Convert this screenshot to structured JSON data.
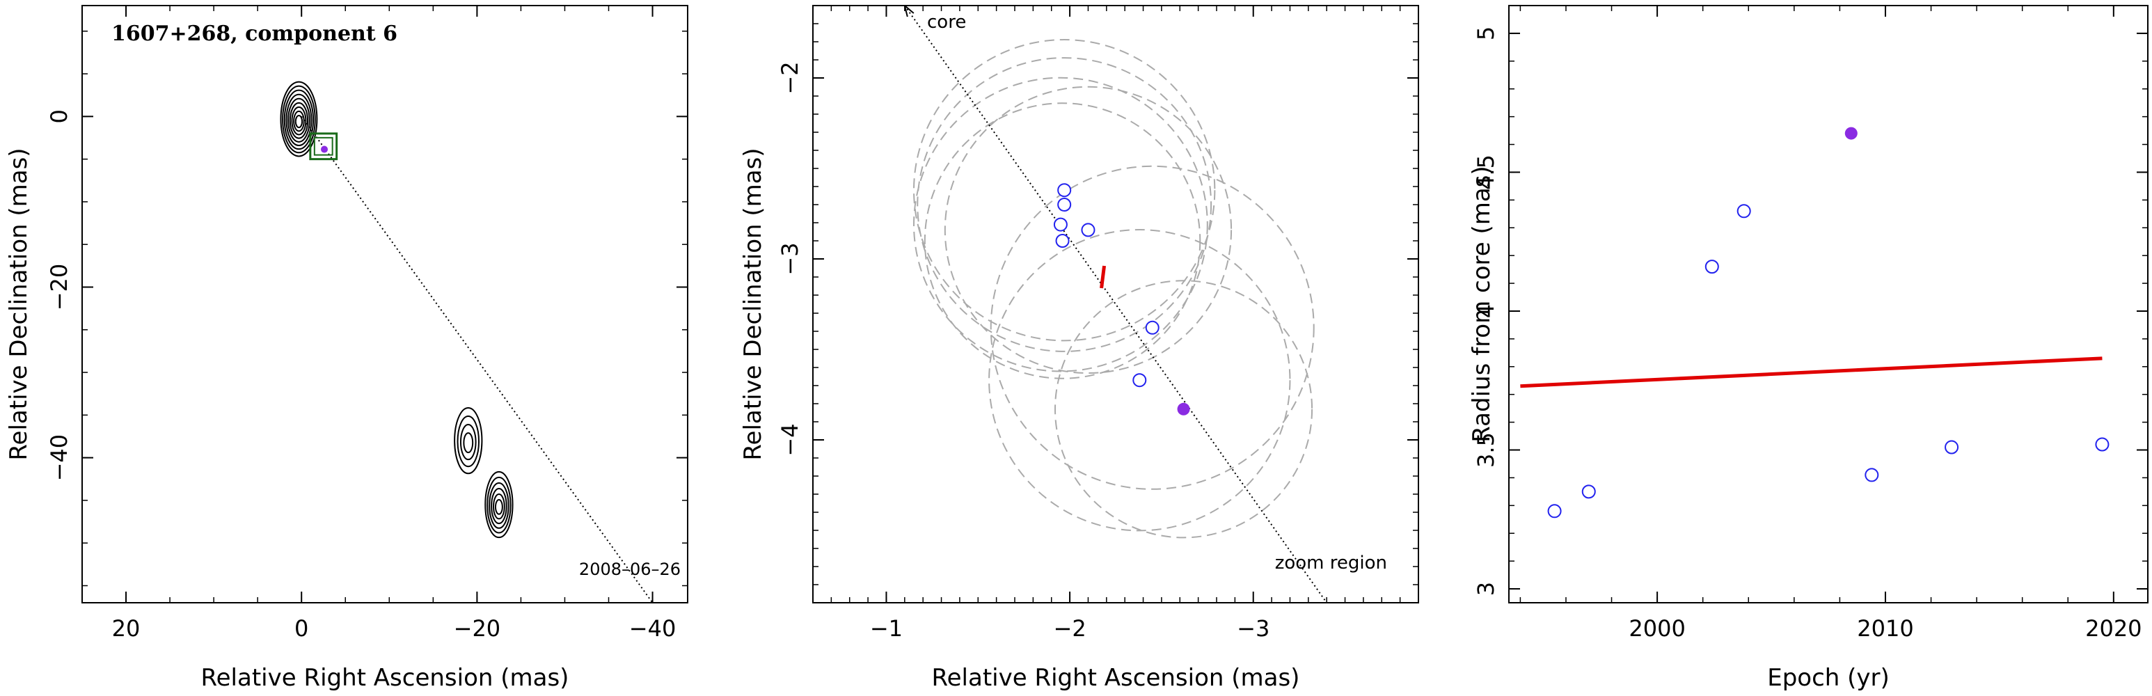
{
  "chart_data": [
    {
      "type": "contour",
      "title": "1607+268, component 6",
      "epoch_label": "2008–06–26",
      "xlabel": "Relative Right Ascension (mas)",
      "ylabel": "Relative Declination (mas)",
      "xlim": [
        25,
        -44
      ],
      "ylim": [
        -57,
        13
      ],
      "xticks": [
        20,
        0,
        -20,
        -40
      ],
      "yticks": [
        0,
        -20,
        -40
      ],
      "tick_labels_x": [
        "20",
        "0",
        "−20",
        "−40"
      ],
      "tick_labels_y": [
        "0",
        "−20",
        "−40"
      ],
      "jet_axis": {
        "from": [
          0,
          0
        ],
        "to": [
          -40,
          -57
        ]
      },
      "zoom_box": {
        "x_range": [
          -1,
          -4
        ],
        "y_range": [
          -2,
          -5
        ],
        "color": "#1a6b1a"
      },
      "marker": {
        "x": -2.6,
        "y": -3.85,
        "color": "#8a2be2"
      },
      "components": [
        {
          "x": 0.3,
          "y": -0.3,
          "levels": 9
        },
        {
          "x": -19,
          "y": -38,
          "levels": 4
        },
        {
          "x": -22.5,
          "y": -45.5,
          "levels": 6
        }
      ]
    },
    {
      "type": "scatter",
      "xlabel": "Relative Right Ascension (mas)",
      "ylabel": "Relative Declination (mas)",
      "xlim": [
        -0.6,
        -3.9
      ],
      "ylim": [
        -4.9,
        -1.6
      ],
      "xticks": [
        -1,
        -2,
        -3
      ],
      "yticks": [
        -2,
        -3,
        -4
      ],
      "tick_labels_x": [
        "−1",
        "−2",
        "−3"
      ],
      "tick_labels_y": [
        "−2",
        "−3",
        "−4"
      ],
      "annotations": {
        "core": "core",
        "zoom": "zoom region"
      },
      "axis_line": {
        "from": [
          -1.1,
          -1.6
        ],
        "to": [
          -3.4,
          -4.9
        ]
      },
      "mean_position": {
        "x": -2.18,
        "y": -3.1,
        "color": "#e00000"
      },
      "points_open": [
        {
          "x": -1.97,
          "y": -2.62
        },
        {
          "x": -1.97,
          "y": -2.7
        },
        {
          "x": -1.95,
          "y": -2.81
        },
        {
          "x": -2.1,
          "y": -2.84
        },
        {
          "x": -1.96,
          "y": -2.9
        },
        {
          "x": -2.45,
          "y": -3.38
        },
        {
          "x": -2.38,
          "y": -3.67
        }
      ],
      "point_filled": {
        "x": -2.62,
        "y": -3.83
      },
      "circles": [
        {
          "x": -1.97,
          "y": -2.62,
          "r": 0.82
        },
        {
          "x": -1.97,
          "y": -2.7,
          "r": 0.8
        },
        {
          "x": -1.95,
          "y": -2.81,
          "r": 0.8
        },
        {
          "x": -2.1,
          "y": -2.84,
          "r": 0.78
        },
        {
          "x": -1.96,
          "y": -2.9,
          "r": 0.75
        },
        {
          "x": -2.45,
          "y": -3.38,
          "r": 0.88
        },
        {
          "x": -2.38,
          "y": -3.67,
          "r": 0.82
        },
        {
          "x": -2.62,
          "y": -3.83,
          "r": 0.7
        }
      ],
      "colors": {
        "open": "#2222ee",
        "filled": "#8a2be2",
        "circle": "#aaaaaa"
      }
    },
    {
      "type": "scatter",
      "xlabel": "Epoch (yr)",
      "ylabel": "Radius from core (mas)",
      "xlim": [
        1993.5,
        2021.5
      ],
      "ylim": [
        2.95,
        5.1
      ],
      "xticks": [
        2000,
        2010,
        2020
      ],
      "yticks": [
        3,
        3.5,
        4,
        4.5,
        5
      ],
      "tick_labels_x": [
        "2000",
        "2010",
        "2020"
      ],
      "tick_labels_y": [
        "3",
        "3.5",
        "4",
        "4.5",
        "5"
      ],
      "points_open": [
        {
          "x": 1995.5,
          "y": 3.28
        },
        {
          "x": 1997.0,
          "y": 3.35
        },
        {
          "x": 2002.4,
          "y": 4.16
        },
        {
          "x": 2003.8,
          "y": 4.36
        },
        {
          "x": 2009.4,
          "y": 3.41
        },
        {
          "x": 2012.9,
          "y": 3.51
        },
        {
          "x": 2019.5,
          "y": 3.52
        }
      ],
      "point_filled": {
        "x": 2008.5,
        "y": 4.64
      },
      "fit_line": {
        "x": [
          1994,
          2019.5
        ],
        "y": [
          3.73,
          3.83
        ],
        "color": "#e00000"
      },
      "colors": {
        "open": "#2222ee",
        "filled": "#8a2be2"
      }
    }
  ]
}
